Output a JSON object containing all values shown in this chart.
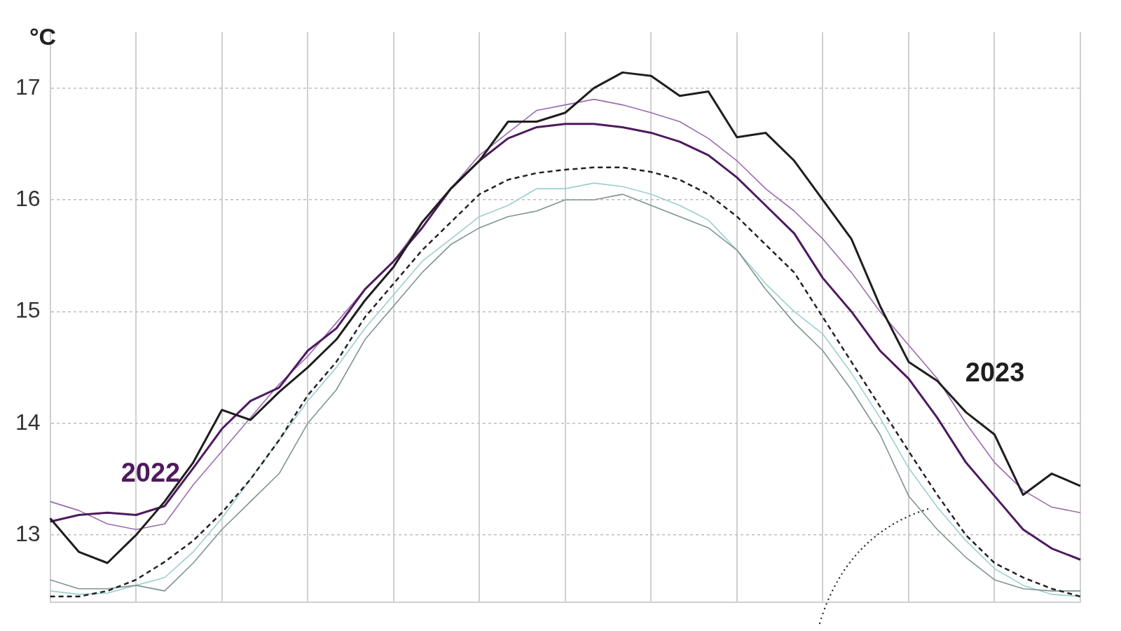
{
  "chart_data": {
    "type": "line",
    "ylabel": "°C",
    "categories": [
      null,
      null,
      null,
      null,
      null,
      null,
      null,
      null,
      null,
      null,
      null,
      null,
      null,
      null,
      null,
      null,
      null,
      null,
      null,
      null,
      null,
      null,
      null,
      null,
      null,
      null,
      null,
      null,
      null,
      null,
      null,
      null,
      null,
      null,
      null,
      null,
      null
    ],
    "ylim": [
      12.4,
      17.5
    ],
    "yticks": [
      13,
      14,
      15,
      16,
      17
    ],
    "tick_labels": "y",
    "grid": true,
    "legend": false,
    "marker": "none",
    "series": [
      {
        "color": "#9b6bb0",
        "values": [
          13.3,
          13.22,
          13.1,
          13.05,
          13.1,
          13.45,
          13.75,
          14.05,
          14.35,
          14.6,
          14.9,
          15.2,
          15.45,
          15.8,
          16.1,
          16.4,
          16.6,
          16.8,
          16.85,
          16.9,
          16.85,
          16.78,
          16.7,
          16.55,
          16.35,
          16.1,
          15.9,
          15.65,
          15.35,
          15.0,
          14.7,
          14.4,
          14.0,
          13.65,
          13.4,
          13.25,
          13.2
        ]
      },
      {
        "color": "#9ecfcf",
        "values": [
          12.5,
          12.47,
          12.48,
          12.55,
          12.62,
          12.85,
          13.15,
          13.5,
          13.85,
          14.2,
          14.5,
          14.85,
          15.15,
          15.45,
          15.65,
          15.85,
          15.95,
          16.1,
          16.1,
          16.15,
          16.12,
          16.05,
          15.95,
          15.82,
          15.55,
          15.25,
          15.0,
          14.8,
          14.45,
          14.05,
          13.6,
          13.25,
          12.95,
          12.7,
          12.55,
          12.47,
          12.45
        ]
      },
      {
        "color": "#7f9590",
        "values": [
          12.6,
          12.52,
          12.52,
          12.55,
          12.5,
          12.75,
          13.05,
          13.3,
          13.55,
          14.0,
          14.3,
          14.75,
          15.05,
          15.35,
          15.6,
          15.75,
          15.85,
          15.9,
          16.0,
          16.0,
          16.05,
          15.95,
          15.85,
          15.75,
          15.55,
          15.2,
          14.9,
          14.65,
          14.3,
          13.9,
          13.35,
          13.05,
          12.8,
          12.6,
          12.52,
          12.5,
          12.5
        ]
      },
      {
        "color": "#222222",
        "line_style": "dashed",
        "values": [
          12.45,
          12.45,
          12.5,
          12.6,
          12.76,
          12.95,
          13.2,
          13.5,
          13.85,
          14.25,
          14.55,
          14.95,
          15.25,
          15.55,
          15.8,
          16.05,
          16.18,
          16.24,
          16.27,
          16.29,
          16.29,
          16.25,
          16.18,
          16.05,
          15.85,
          15.6,
          15.35,
          14.95,
          14.55,
          14.15,
          13.75,
          13.36,
          13.0,
          12.75,
          12.62,
          12.52,
          12.45
        ]
      },
      {
        "name": "2022",
        "color": "#4e1a5e",
        "values": [
          13.12,
          13.18,
          13.2,
          13.18,
          13.26,
          13.6,
          13.95,
          14.2,
          14.32,
          14.65,
          14.85,
          15.2,
          15.45,
          15.75,
          16.1,
          16.35,
          16.55,
          16.65,
          16.68,
          16.68,
          16.65,
          16.6,
          16.52,
          16.4,
          16.2,
          15.95,
          15.7,
          15.3,
          15.0,
          14.65,
          14.4,
          14.05,
          13.65,
          13.35,
          13.05,
          12.88,
          12.78
        ]
      },
      {
        "name": "2023",
        "color": "#1e1e1e",
        "values": [
          13.15,
          12.85,
          12.75,
          13.0,
          13.3,
          13.65,
          14.12,
          14.03,
          14.28,
          14.5,
          14.75,
          15.1,
          15.4,
          15.8,
          16.1,
          16.35,
          16.7,
          16.7,
          16.78,
          17.0,
          17.14,
          17.11,
          16.93,
          16.97,
          16.56,
          16.6,
          16.35,
          16.0,
          15.65,
          15.05,
          14.55,
          14.38,
          14.1,
          13.9,
          13.36,
          13.55,
          13.44
        ]
      }
    ]
  }
}
